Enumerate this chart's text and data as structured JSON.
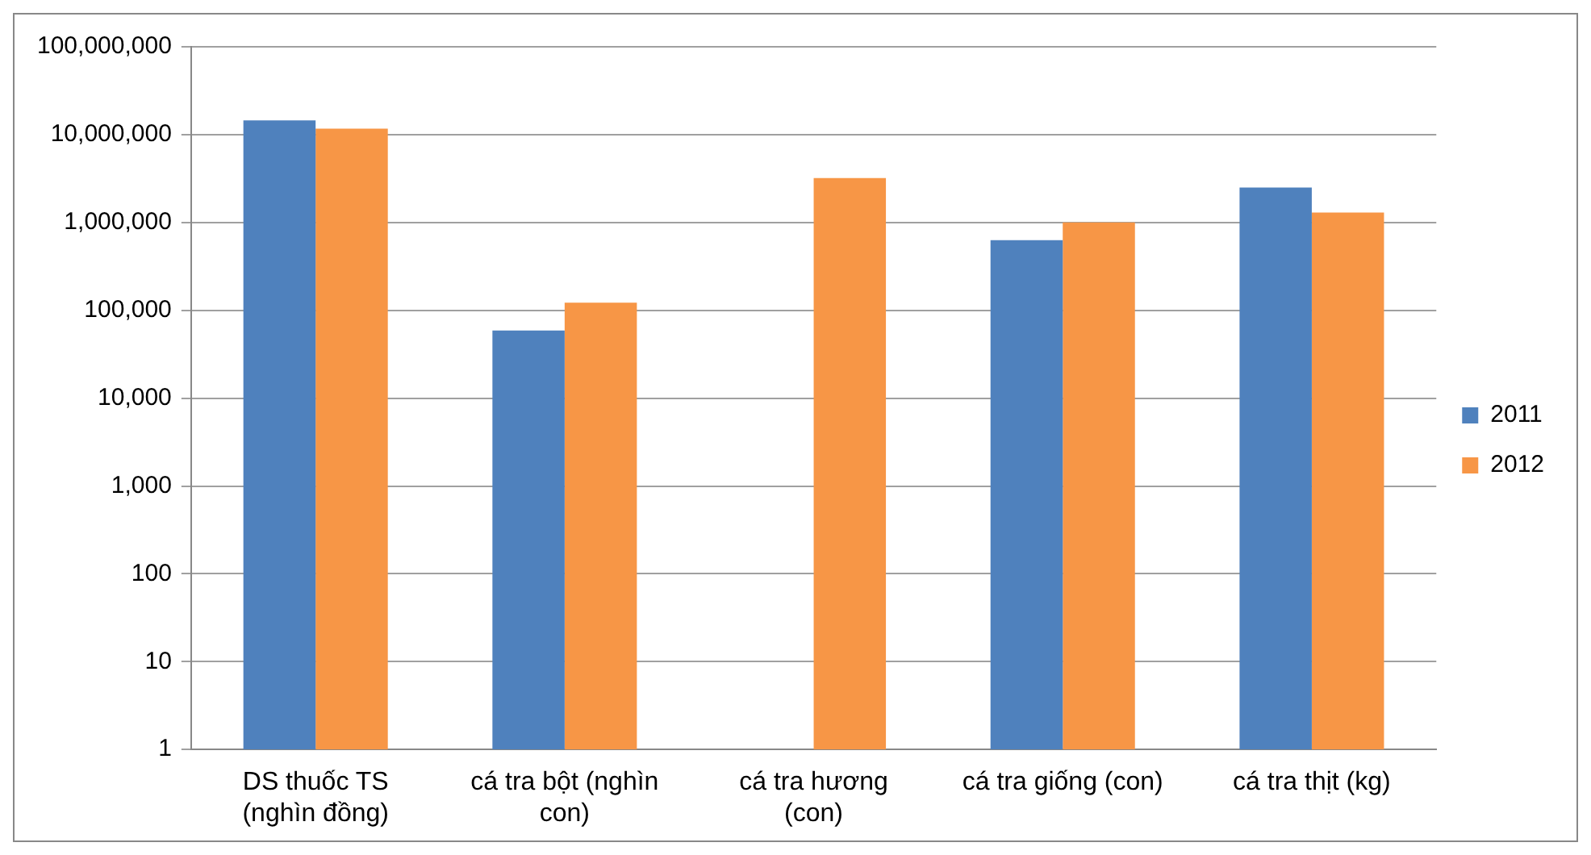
{
  "chart_data": {
    "type": "bar",
    "categories": [
      "DS thuốc TS (nghìn đồng)",
      "cá tra bột (nghìn con)",
      "cá tra hương (con)",
      "cá tra giống (con)",
      "cá tra thịt (kg)"
    ],
    "series": [
      {
        "name": "2011",
        "color": "#4f81bd",
        "values": [
          14500000,
          59000,
          null,
          630000,
          2500000
        ]
      },
      {
        "name": "2012",
        "color": "#f79646",
        "values": [
          11700000,
          122000,
          3200000,
          1000000,
          1300000
        ]
      }
    ],
    "log": true,
    "ylim": [
      1,
      100000000
    ],
    "yticks": [
      {
        "value": 1,
        "label": "1"
      },
      {
        "value": 10,
        "label": "10"
      },
      {
        "value": 100,
        "label": "100"
      },
      {
        "value": 1000,
        "label": "1,000"
      },
      {
        "value": 10000,
        "label": "10,000"
      },
      {
        "value": 100000,
        "label": "100,000"
      },
      {
        "value": 1000000,
        "label": "1,000,000"
      },
      {
        "value": 10000000,
        "label": "10,000,000"
      },
      {
        "value": 100000000,
        "label": "100,000,000"
      }
    ],
    "grid": "y",
    "legend": "right"
  }
}
